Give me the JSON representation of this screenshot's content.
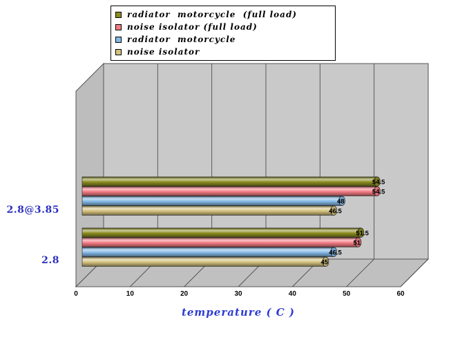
{
  "window": {
    "background": "#FFFFFF"
  },
  "legend": {
    "items": [
      {
        "label": "radiator  motorcycle  (full load)",
        "color": "#8C8C21"
      },
      {
        "label": "noise isolator (full load)",
        "color": "#F47C84"
      },
      {
        "label": "radiator  motorcycle",
        "color": "#85B9E6"
      },
      {
        "label": "noise isolator",
        "color": "#D4C27E"
      }
    ]
  },
  "axis": {
    "category_color": "#2B2FC0",
    "title_color": "#2B3BD6",
    "tick_color": "#000000"
  },
  "chart_data": {
    "type": "bar",
    "orientation": "horizontal",
    "style": "3d-cylinder",
    "title": "",
    "xlabel": "temperature ( C )",
    "ylabel": "",
    "xlim": [
      0,
      60
    ],
    "x_ticks": [
      0,
      10,
      20,
      30,
      40,
      50,
      60
    ],
    "grid": true,
    "legend_position": "top",
    "categories": [
      "2.8@3.85",
      "2.8"
    ],
    "series": [
      {
        "name": "radiator  motorcycle  (full load)",
        "color": "#8C8C21",
        "values": [
          54.5,
          51.5
        ]
      },
      {
        "name": "noise isolator (full load)",
        "color": "#F47C84",
        "values": [
          54.5,
          51
        ]
      },
      {
        "name": "radiator  motorcycle",
        "color": "#85B9E6",
        "values": [
          48,
          46.5
        ]
      },
      {
        "name": "noise isolator",
        "color": "#D4C27E",
        "values": [
          46.5,
          45
        ]
      }
    ]
  }
}
